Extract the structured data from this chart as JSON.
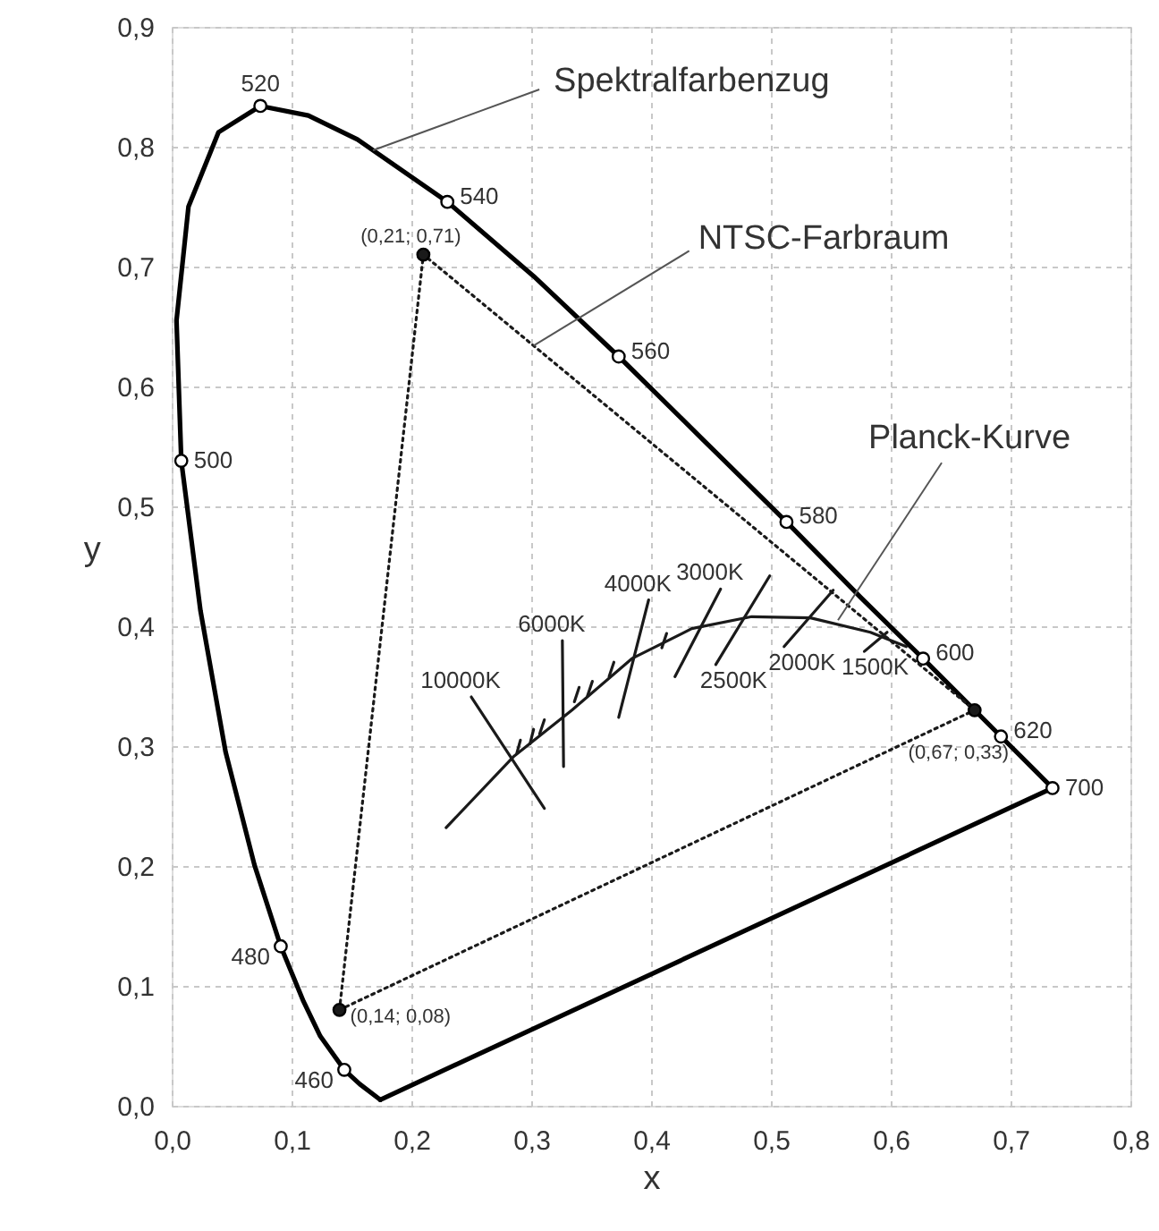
{
  "chart_data": {
    "type": "line",
    "xlabel": "x",
    "ylabel": "y",
    "xlim": [
      0,
      0.8
    ],
    "ylim": [
      0,
      0.9
    ],
    "xticks": [
      {
        "value": 0,
        "label": "0,0"
      },
      {
        "value": 0.1,
        "label": "0,1"
      },
      {
        "value": 0.2,
        "label": "0,2"
      },
      {
        "value": 0.3,
        "label": "0,3"
      },
      {
        "value": 0.4,
        "label": "0,4"
      },
      {
        "value": 0.5,
        "label": "0,5"
      },
      {
        "value": 0.6,
        "label": "0,6"
      },
      {
        "value": 0.7,
        "label": "0,7"
      },
      {
        "value": 0.8,
        "label": "0,8"
      }
    ],
    "yticks": [
      {
        "value": 0,
        "label": "0,0"
      },
      {
        "value": 0.1,
        "label": "0,1"
      },
      {
        "value": 0.2,
        "label": "0,2"
      },
      {
        "value": 0.3,
        "label": "0,3"
      },
      {
        "value": 0.4,
        "label": "0,4"
      },
      {
        "value": 0.5,
        "label": "0,5"
      },
      {
        "value": 0.6,
        "label": "0,6"
      },
      {
        "value": 0.7,
        "label": "0,7"
      },
      {
        "value": 0.8,
        "label": "0,8"
      },
      {
        "value": 0.9,
        "label": "0,9"
      }
    ],
    "grid": true,
    "series": [
      {
        "type": "line",
        "color": "#000000",
        "x": [
          0.174,
          0.157,
          0.144,
          0.124,
          0.11,
          0.091,
          0.069,
          0.045,
          0.024,
          0.008,
          0.004,
          0.014,
          0.039,
          0.074,
          0.114,
          0.155,
          0.23,
          0.302,
          0.373,
          0.444,
          0.513,
          0.575,
          0.627,
          0.692,
          0.719,
          0.735
        ],
        "values": [
          0.005,
          0.018,
          0.03,
          0.058,
          0.087,
          0.133,
          0.201,
          0.295,
          0.413,
          0.538,
          0.655,
          0.75,
          0.812,
          0.834,
          0.826,
          0.806,
          0.754,
          0.692,
          0.625,
          0.555,
          0.487,
          0.424,
          0.373,
          0.308,
          0.281,
          0.265
        ]
      },
      {
        "type": "line",
        "color": "#000000",
        "x": [
          0.174,
          0.735
        ],
        "values": [
          0.005,
          0.265
        ]
      },
      {
        "type": "scatter",
        "marker": "circle",
        "color": "#ffffff",
        "x": [
          0.144,
          0.091,
          0.008,
          0.074,
          0.23,
          0.373,
          0.513,
          0.627,
          0.692,
          0.735
        ],
        "values": [
          0.03,
          0.133,
          0.538,
          0.834,
          0.754,
          0.625,
          0.487,
          0.373,
          0.308,
          0.265
        ]
      },
      {
        "type": "line",
        "line_style": "dotted",
        "color": "#1a1a1a",
        "x": [
          0.14,
          0.21,
          0.67
        ],
        "values": [
          0.08,
          0.71,
          0.33
        ]
      },
      {
        "type": "line",
        "line_style": "dotted",
        "color": "#1a1a1a",
        "x": [
          0.14,
          0.67
        ],
        "values": [
          0.08,
          0.33
        ]
      },
      {
        "type": "scatter",
        "marker": "circle",
        "color": "#1a1a1a",
        "x": [
          0.21,
          0.67,
          0.14
        ],
        "values": [
          0.71,
          0.33,
          0.08
        ]
      },
      {
        "type": "line",
        "color": "#1a1a1a",
        "x": [
          0.229,
          0.285,
          0.334,
          0.384,
          0.434,
          0.484,
          0.533,
          0.583,
          0.613
        ],
        "values": [
          0.232,
          0.291,
          0.33,
          0.373,
          0.398,
          0.408,
          0.407,
          0.395,
          0.383
        ]
      },
      {
        "type": "line",
        "color": "#1a1a1a",
        "x": [
          0.25,
          0.311
        ],
        "values": [
          0.341,
          0.248
        ]
      },
      {
        "type": "line",
        "color": "#1a1a1a",
        "x": [
          0.326,
          0.327
        ],
        "values": [
          0.388,
          0.283
        ]
      },
      {
        "type": "line",
        "color": "#1a1a1a",
        "x": [
          0.398,
          0.373
        ],
        "values": [
          0.422,
          0.324
        ]
      },
      {
        "type": "line",
        "color": "#1a1a1a",
        "x": [
          0.458,
          0.42
        ],
        "values": [
          0.431,
          0.358
        ]
      },
      {
        "type": "line",
        "color": "#1a1a1a",
        "x": [
          0.499,
          0.454
        ],
        "values": [
          0.442,
          0.368
        ]
      },
      {
        "type": "line",
        "color": "#1a1a1a",
        "x": [
          0.552,
          0.511
        ],
        "values": [
          0.43,
          0.383
        ]
      },
      {
        "type": "line",
        "color": "#1a1a1a",
        "x": [
          0.597,
          0.578
        ],
        "values": [
          0.395,
          0.379
        ]
      },
      {
        "type": "line",
        "color": "#1a1a1a",
        "x": [
          0.291,
          0.288
        ],
        "values": [
          0.305,
          0.294
        ]
      },
      {
        "type": "line",
        "color": "#1a1a1a",
        "x": [
          0.302,
          0.299
        ],
        "values": [
          0.314,
          0.302
        ]
      },
      {
        "type": "line",
        "color": "#1a1a1a",
        "x": [
          0.311,
          0.307
        ],
        "values": [
          0.322,
          0.31
        ]
      },
      {
        "type": "line",
        "color": "#1a1a1a",
        "x": [
          0.34,
          0.336
        ],
        "values": [
          0.349,
          0.337
        ]
      },
      {
        "type": "line",
        "color": "#1a1a1a",
        "x": [
          0.351,
          0.347
        ],
        "values": [
          0.354,
          0.342
        ]
      },
      {
        "type": "line",
        "color": "#1a1a1a",
        "x": [
          0.369,
          0.365
        ],
        "values": [
          0.37,
          0.358
        ]
      },
      {
        "type": "line",
        "color": "#1a1a1a",
        "x": [
          0.413,
          0.409
        ],
        "values": [
          0.394,
          0.382
        ]
      }
    ],
    "annotations": [
      {
        "text": "Spektralfarbenzug",
        "x": 0.168,
        "y": 0.797
      },
      {
        "text": "NTSC-Farbraum",
        "x": 0.302,
        "y": 0.634
      },
      {
        "text": "Planck-Kurve",
        "x": 0.556,
        "y": 0.405
      },
      {
        "text": "460",
        "x": 0.144,
        "y": 0.03
      },
      {
        "text": "480",
        "x": 0.091,
        "y": 0.133
      },
      {
        "text": "500",
        "x": 0.008,
        "y": 0.538
      },
      {
        "text": "520",
        "x": 0.074,
        "y": 0.834
      },
      {
        "text": "540",
        "x": 0.23,
        "y": 0.754
      },
      {
        "text": "560",
        "x": 0.373,
        "y": 0.625
      },
      {
        "text": "580",
        "x": 0.513,
        "y": 0.487
      },
      {
        "text": "600",
        "x": 0.627,
        "y": 0.373
      },
      {
        "text": "620",
        "x": 0.692,
        "y": 0.308
      },
      {
        "text": "700",
        "x": 0.735,
        "y": 0.265
      },
      {
        "text": "(0,21; 0,71)",
        "x": 0.21,
        "y": 0.71
      },
      {
        "text": "(0,67; 0,33)",
        "x": 0.67,
        "y": 0.33
      },
      {
        "text": "(0,14; 0,08)",
        "x": 0.14,
        "y": 0.08
      },
      {
        "text": "10000K",
        "x": 0.25,
        "y": 0.341
      },
      {
        "text": "6000K",
        "x": 0.326,
        "y": 0.388
      },
      {
        "text": "4000K",
        "x": 0.398,
        "y": 0.422
      },
      {
        "text": "3000K",
        "x": 0.458,
        "y": 0.431
      },
      {
        "text": "2500K",
        "x": 0.454,
        "y": 0.368
      },
      {
        "text": "2000K",
        "x": 0.511,
        "y": 0.383
      },
      {
        "text": "1500K",
        "x": 0.578,
        "y": 0.379
      }
    ]
  }
}
